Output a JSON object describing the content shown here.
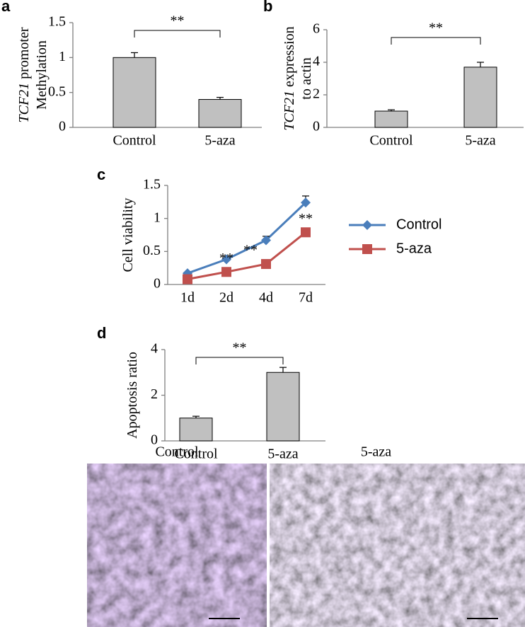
{
  "chart_data": [
    {
      "panel": "a",
      "type": "bar",
      "ylabel": [
        [
          "TCF21",
          "promoter"
        ],
        [
          "Methylation"
        ]
      ],
      "categories": [
        "Control",
        "5-aza"
      ],
      "values": [
        1.0,
        0.4
      ],
      "errors": [
        0.07,
        0.03
      ],
      "color": "#c0c0c0",
      "ylim": [
        0,
        1.5
      ],
      "yticks": [
        0,
        0.5,
        1,
        1.5
      ],
      "significance": "**"
    },
    {
      "panel": "b",
      "type": "bar",
      "ylabel": [
        [
          "TCF21",
          "expression"
        ],
        [
          "to actin"
        ]
      ],
      "categories": [
        "Control",
        "5-aza"
      ],
      "values": [
        1.0,
        3.7
      ],
      "errors": [
        0.08,
        0.3
      ],
      "color": "#c0c0c0",
      "ylim": [
        0,
        6
      ],
      "yticks": [
        0,
        2,
        4,
        6
      ],
      "significance": "**"
    },
    {
      "panel": "c",
      "type": "line",
      "ylabel": [
        [
          "Cell viability"
        ]
      ],
      "categories": [
        "1d",
        "2d",
        "4d",
        "7d"
      ],
      "series": [
        {
          "name": "Control",
          "color": "#4a7ebb",
          "marker": "diamond",
          "values": [
            0.17,
            0.38,
            0.67,
            1.24
          ],
          "errors": [
            0.01,
            0.02,
            0.06,
            0.1
          ]
        },
        {
          "name": "5-aza",
          "color": "#c0504d",
          "marker": "square",
          "values": [
            0.08,
            0.19,
            0.31,
            0.79
          ],
          "errors": [
            0.01,
            0.02,
            0.02,
            0.06
          ]
        }
      ],
      "ylim": [
        0,
        1.5
      ],
      "yticks": [
        0,
        0.5,
        1,
        1.5
      ],
      "significance": [
        null,
        "**",
        "**",
        "**"
      ]
    },
    {
      "panel": "d",
      "type": "bar",
      "ylabel": [
        [
          "Apoptosis ratio"
        ]
      ],
      "categories": [
        "Control",
        "5-aza"
      ],
      "values": [
        1.0,
        3.0
      ],
      "errors": [
        0.08,
        0.22
      ],
      "color": "#c0c0c0",
      "ylim": [
        0,
        4
      ],
      "yticks": [
        0,
        2,
        4
      ],
      "significance": "**"
    },
    {
      "panel": "e",
      "type": "image",
      "titles": [
        "Control",
        "5-aza"
      ]
    }
  ]
}
